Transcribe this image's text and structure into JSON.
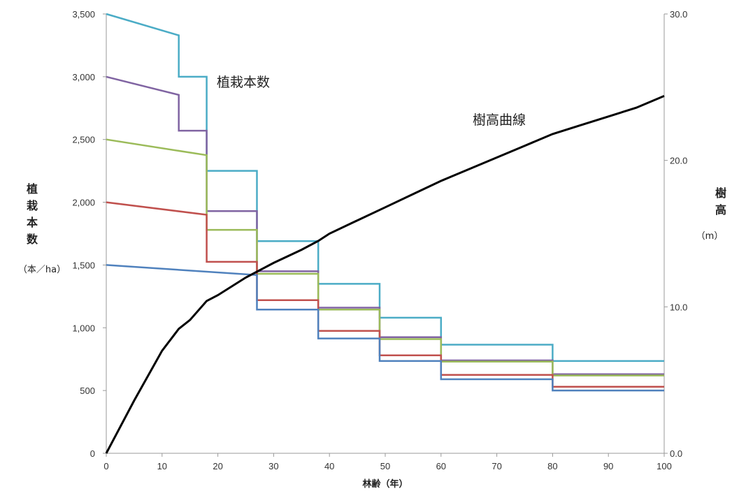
{
  "chart_data": {
    "type": "line",
    "xlabel": "林齢（年）",
    "ylabel_left": "植栽本数",
    "ylabel_left_unit": "（本／ha）",
    "ylabel_right": "樹高",
    "ylabel_right_unit": "（m）",
    "xlim": [
      0,
      100
    ],
    "ylim_left": [
      0,
      3500
    ],
    "ylim_right": [
      0,
      30
    ],
    "x_ticks": [
      "0",
      "10",
      "20",
      "30",
      "40",
      "50",
      "60",
      "70",
      "80",
      "90",
      "100"
    ],
    "y_left_ticks": [
      "0",
      "500",
      "1,000",
      "1,500",
      "2,000",
      "2,500",
      "3,000",
      "3,500"
    ],
    "y_right_ticks": [
      "0.0",
      "10.0",
      "20.0",
      "30.0"
    ],
    "grid": false,
    "annotations": [
      {
        "text": "植栽本数"
      },
      {
        "text": "樹高曲線"
      }
    ],
    "series": [
      {
        "color": "#4bacc6",
        "axis": "left",
        "shape": "step",
        "points": [
          [
            0,
            3500
          ],
          [
            13,
            3330
          ],
          [
            13,
            3000
          ],
          [
            18,
            3000
          ],
          [
            18,
            2250
          ],
          [
            27,
            2250
          ],
          [
            27,
            1690
          ],
          [
            38,
            1690
          ],
          [
            38,
            1350
          ],
          [
            49,
            1350
          ],
          [
            49,
            1080
          ],
          [
            60,
            1080
          ],
          [
            60,
            865
          ],
          [
            80,
            865
          ],
          [
            80,
            735
          ],
          [
            100,
            735
          ]
        ]
      },
      {
        "color": "#8064a2",
        "axis": "left",
        "shape": "step",
        "points": [
          [
            0,
            3000
          ],
          [
            13,
            2855
          ],
          [
            13,
            2570
          ],
          [
            18,
            2570
          ],
          [
            18,
            1930
          ],
          [
            27,
            1930
          ],
          [
            27,
            1450
          ],
          [
            38,
            1450
          ],
          [
            38,
            1160
          ],
          [
            49,
            1160
          ],
          [
            49,
            925
          ],
          [
            60,
            925
          ],
          [
            60,
            740
          ],
          [
            80,
            740
          ],
          [
            80,
            630
          ],
          [
            100,
            630
          ]
        ]
      },
      {
        "color": "#9bbb59",
        "axis": "left",
        "shape": "step",
        "points": [
          [
            0,
            2500
          ],
          [
            18,
            2375
          ],
          [
            18,
            1780
          ],
          [
            27,
            1780
          ],
          [
            27,
            1430
          ],
          [
            38,
            1430
          ],
          [
            38,
            1145
          ],
          [
            49,
            1145
          ],
          [
            49,
            910
          ],
          [
            60,
            910
          ],
          [
            60,
            730
          ],
          [
            80,
            730
          ],
          [
            80,
            620
          ],
          [
            100,
            620
          ]
        ]
      },
      {
        "color": "#c0504d",
        "axis": "left",
        "shape": "step",
        "points": [
          [
            0,
            2000
          ],
          [
            18,
            1900
          ],
          [
            18,
            1525
          ],
          [
            27,
            1525
          ],
          [
            27,
            1220
          ],
          [
            38,
            1220
          ],
          [
            38,
            975
          ],
          [
            49,
            975
          ],
          [
            49,
            780
          ],
          [
            60,
            780
          ],
          [
            60,
            625
          ],
          [
            80,
            625
          ],
          [
            80,
            530
          ],
          [
            100,
            530
          ]
        ]
      },
      {
        "color": "#4f81bd",
        "axis": "left",
        "shape": "step",
        "points": [
          [
            0,
            1500
          ],
          [
            27,
            1420
          ],
          [
            27,
            1145
          ],
          [
            38,
            1145
          ],
          [
            38,
            915
          ],
          [
            49,
            915
          ],
          [
            49,
            735
          ],
          [
            60,
            735
          ],
          [
            60,
            590
          ],
          [
            80,
            590
          ],
          [
            80,
            500
          ],
          [
            100,
            500
          ]
        ]
      },
      {
        "color": "#000000",
        "axis": "right",
        "shape": "line",
        "points": [
          [
            0,
            0
          ],
          [
            5,
            3.6
          ],
          [
            10,
            7
          ],
          [
            13,
            8.5
          ],
          [
            15,
            9.1
          ],
          [
            18,
            10.4
          ],
          [
            20,
            10.8
          ],
          [
            25,
            12
          ],
          [
            27,
            12.4
          ],
          [
            30,
            13
          ],
          [
            35,
            13.9
          ],
          [
            38,
            14.5
          ],
          [
            40,
            15
          ],
          [
            45,
            15.9
          ],
          [
            50,
            16.8
          ],
          [
            55,
            17.7
          ],
          [
            60,
            18.6
          ],
          [
            65,
            19.4
          ],
          [
            70,
            20.2
          ],
          [
            75,
            21
          ],
          [
            80,
            21.8
          ],
          [
            85,
            22.4
          ],
          [
            90,
            23
          ],
          [
            95,
            23.6
          ],
          [
            100,
            24.4
          ]
        ]
      }
    ]
  }
}
